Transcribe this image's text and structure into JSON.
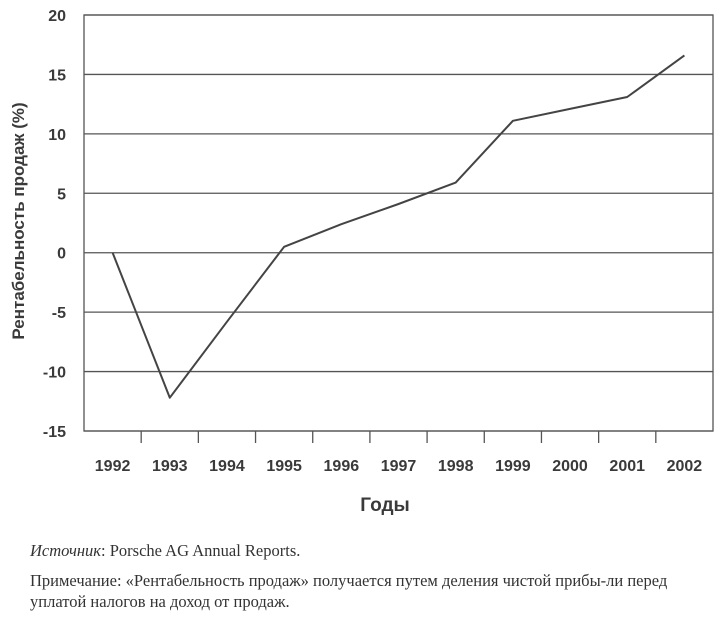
{
  "chart_data": {
    "type": "line",
    "ylabel": "Рентабельность продаж (%)",
    "xlabel": "Годы",
    "x": [
      "1992",
      "1993",
      "1994",
      "1995",
      "1996",
      "1997",
      "1998",
      "1999",
      "2000",
      "2001",
      "2002"
    ],
    "series": [
      {
        "values": [
          0,
          -12.2,
          -5.8,
          0.5,
          2.4,
          4.1,
          5.9,
          11.1,
          12.1,
          13.1,
          16.6
        ]
      }
    ],
    "ylim": [
      -15,
      20
    ],
    "yticks": [
      "20",
      "15",
      "10",
      "5",
      "0",
      "-5",
      "-10",
      "-15"
    ],
    "grid": true
  },
  "source": {
    "label": "Источник",
    "text": ": Porsche AG Annual Reports."
  },
  "note": "Примечание: «Рентабельность продаж» получается путем деления чистой прибы-ли перед уплатой налогов на доход от продаж."
}
